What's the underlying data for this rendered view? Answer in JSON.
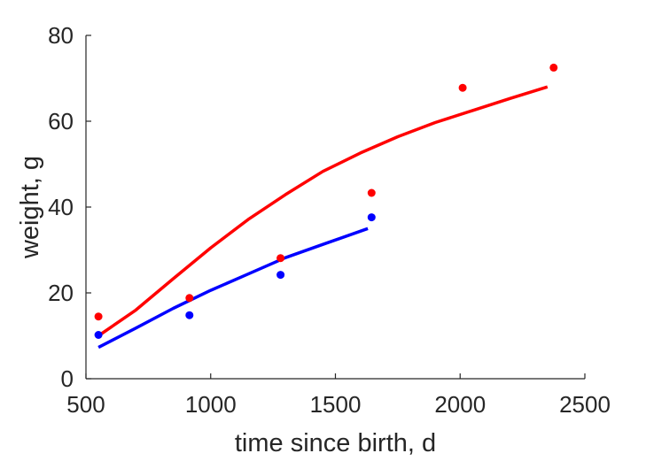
{
  "chart_data": {
    "type": "scatter",
    "xlabel": "time since birth, d",
    "ylabel": "weight, g",
    "xlim": [
      500,
      2500
    ],
    "ylim": [
      0,
      80
    ],
    "xticks": [
      500,
      1000,
      1500,
      2000,
      2500
    ],
    "yticks": [
      0,
      20,
      40,
      60,
      80
    ],
    "grid": false,
    "legend": "none",
    "box": false,
    "series": [
      {
        "color": "#ff0000",
        "points": {
          "x": [
            550,
            915,
            1280,
            1645,
            2010,
            2375
          ],
          "y": [
            14.5,
            18.8,
            28.1,
            43.3,
            67.8,
            72.5
          ]
        },
        "fit": {
          "x": [
            550,
            700,
            850,
            1000,
            1150,
            1300,
            1450,
            1600,
            1750,
            1900,
            2050,
            2200,
            2350
          ],
          "y": [
            10.0,
            16.0,
            23.3,
            30.5,
            37.1,
            42.9,
            48.3,
            52.6,
            56.4,
            59.7,
            62.5,
            65.3,
            68.0
          ]
        }
      },
      {
        "color": "#0000ff",
        "points": {
          "x": [
            550,
            915,
            1280,
            1645
          ],
          "y": [
            10.2,
            14.8,
            24.2,
            37.6
          ]
        },
        "fit": {
          "x": [
            550,
            700,
            850,
            1000,
            1150,
            1300,
            1450,
            1630
          ],
          "y": [
            7.3,
            11.8,
            16.4,
            20.6,
            24.4,
            28.2,
            31.3,
            35.0
          ]
        }
      }
    ]
  }
}
